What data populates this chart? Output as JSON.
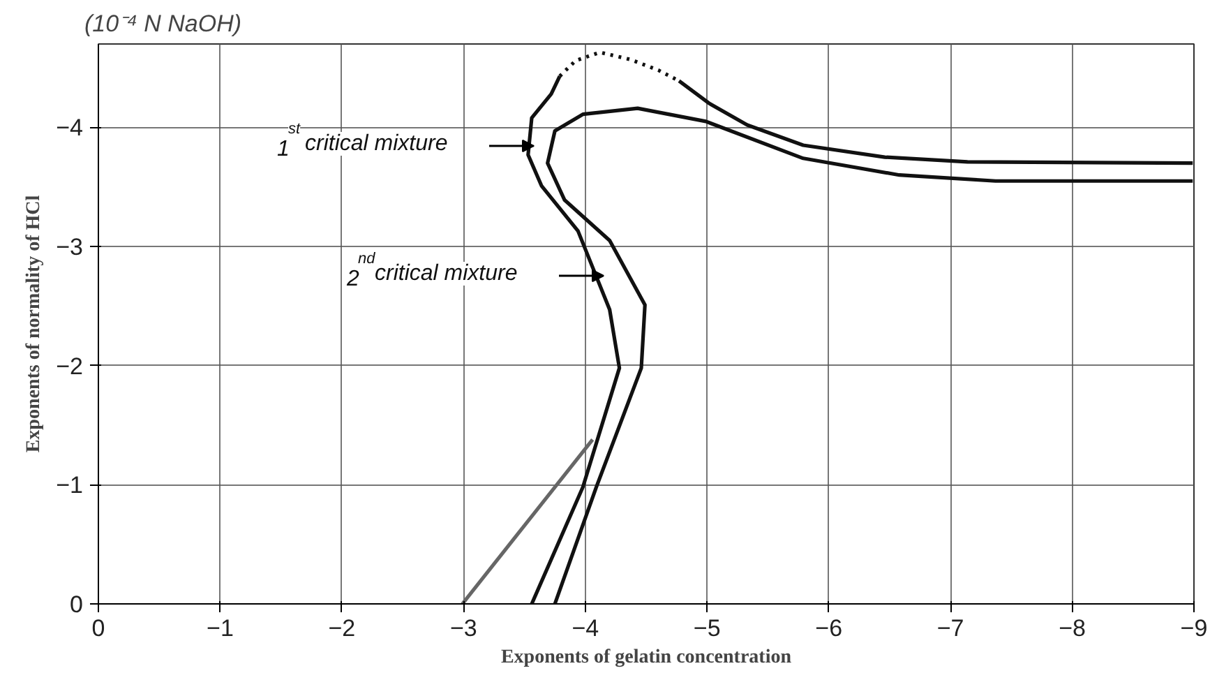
{
  "chart_data": {
    "type": "line",
    "xlabel": "Exponents of gelatin concentration",
    "ylabel": "Exponents of normality of HCl",
    "xlim": [
      0,
      -9
    ],
    "ylim": [
      0,
      -4.7
    ],
    "xticks": [
      0,
      -1,
      -2,
      -3,
      -4,
      -5,
      -6,
      -7,
      -8,
      -9
    ],
    "yticks": [
      0,
      -1,
      -2,
      -3,
      -4
    ],
    "grid": true,
    "marker": "none",
    "series": [
      {
        "color": "#111111",
        "line_style": "solid",
        "x": [
          -3.56,
          -3.98,
          -4.28,
          -4.2,
          -3.94,
          -3.64,
          -3.53,
          -3.56,
          -3.72,
          -3.79,
          null,
          -4.77,
          -5.02,
          -5.33,
          -5.79,
          -6.46,
          -7.14,
          -8.99
        ],
        "values": [
          0,
          -0.98,
          -1.98,
          -2.47,
          -3.13,
          -3.51,
          -3.77,
          -4.08,
          -4.28,
          -4.43,
          null,
          -4.39,
          -4.2,
          -4.02,
          -3.85,
          -3.75,
          -3.71,
          -3.7
        ]
      },
      {
        "color": "#111111",
        "line_style": "dotted",
        "x": [
          -3.79,
          -3.92,
          -4.12,
          -4.37,
          -4.6,
          -4.77
        ],
        "values": [
          -4.43,
          -4.56,
          -4.63,
          -4.57,
          -4.48,
          -4.39
        ]
      },
      {
        "color": "#111111",
        "line_style": "solid",
        "x": [
          -3.75,
          -4.09,
          -4.46,
          -4.49,
          -4.2,
          -3.83,
          -3.69,
          -3.75,
          -3.98,
          -4.43,
          -4.99,
          -5.79,
          -6.58,
          -7.37,
          -8.99
        ],
        "values": [
          0,
          -0.98,
          -1.98,
          -2.51,
          -3.05,
          -3.39,
          -3.7,
          -3.97,
          -4.11,
          -4.16,
          -4.05,
          -3.74,
          -3.6,
          -3.55,
          -3.55
        ]
      },
      {
        "color": "#666666",
        "line_style": "solid",
        "x": [
          -2.99,
          -4.06
        ],
        "values": [
          0,
          -1.38
        ]
      }
    ],
    "annotations": [
      "(10⁻⁴ N NaOH)",
      "1$^{st}$critical mixture",
      "2$^{nd}$critical mixture"
    ]
  }
}
